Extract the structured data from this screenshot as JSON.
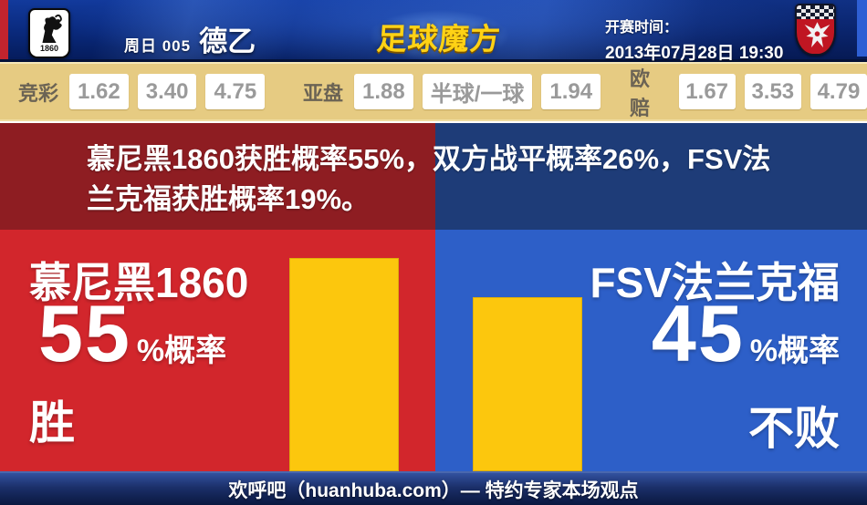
{
  "header": {
    "home_badge_text": "1860",
    "match_day": "周日 005",
    "league": "德乙",
    "brand": "足球魔方",
    "kickoff_label": "开赛时间：",
    "kickoff_time": "2013年07月28日 19:30"
  },
  "odds": {
    "jingcai": {
      "label": "竞彩",
      "values": [
        "1.62",
        "3.40",
        "4.75"
      ]
    },
    "yapan": {
      "label": "亚盘",
      "values": [
        "1.88",
        "半球/一球",
        "1.94"
      ]
    },
    "oupei": {
      "label": "欧赔",
      "values": [
        "1.67",
        "3.53",
        "4.79"
      ]
    }
  },
  "summary": {
    "lines": [
      "慕尼黑1860获胜概率55%，双方战平概率26%，FSV法",
      "兰克福获胜概率19%。"
    ]
  },
  "left_panel": {
    "team": "慕尼黑1860",
    "number": "55",
    "suffix": "%概率",
    "outcome": "胜"
  },
  "right_panel": {
    "team": "FSV法兰克福",
    "number": "45",
    "suffix": "%概率",
    "outcome": "不败"
  },
  "footer": {
    "text": "欢呼吧（huanhuba.com）— 特约专家本场观点"
  },
  "chart_data": {
    "type": "bar",
    "categories": [
      "慕尼黑1860 胜",
      "FSV法兰克福 不败"
    ],
    "values": [
      55,
      45
    ],
    "unit": "%",
    "title": "慕尼黑1860获胜概率55%，双方战平概率26%，FSV法兰克福获胜概率19%。",
    "probabilities": {
      "home_win": 55,
      "draw": 26,
      "away_win": 19,
      "away_unbeaten": 45
    },
    "ylim": [
      0,
      62
    ],
    "bar_color": "#fcc70d",
    "legend": "off",
    "grid": "off"
  },
  "colors": {
    "header_navy": "#0b2c82",
    "left_accent": "#c2242e",
    "right_accent": "#2e5fd4",
    "odds_bg": "#e6cb82",
    "odds_value_text": "#9a9a9a",
    "summary_red": "#8e1d22",
    "summary_blue": "#1e3c78",
    "panel_red": "#d2262c",
    "panel_blue": "#2d5fc8",
    "bar_yellow": "#fcc70d",
    "footer_navy": "#1b2f69"
  }
}
